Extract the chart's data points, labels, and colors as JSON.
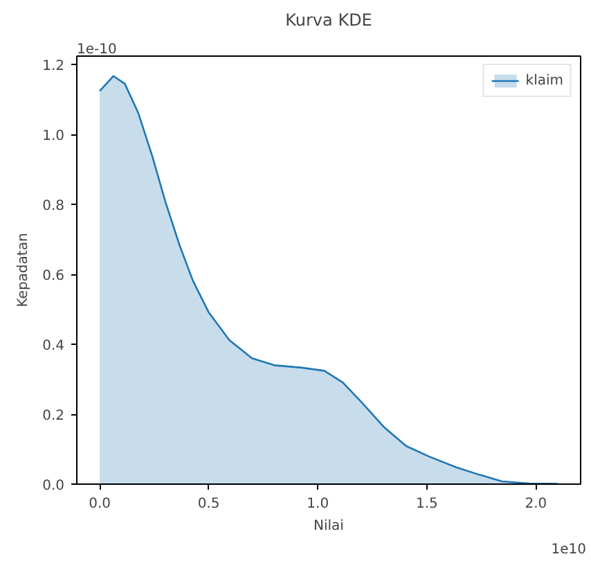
{
  "chart_data": {
    "type": "area",
    "title": "Kurva KDE",
    "xlabel": "Nilai",
    "ylabel": "Kepadatan",
    "annotations": [
      "1e-10",
      "1e10"
    ],
    "series": [
      {
        "name": "klaim",
        "color": "#1f77b4",
        "x": [
          0.0,
          0.0625,
          0.115,
          0.177,
          0.24,
          0.3,
          0.365,
          0.427,
          0.5,
          0.594,
          0.698,
          0.8,
          0.927,
          1.03,
          1.114,
          1.198,
          1.302,
          1.405,
          1.51,
          1.635,
          1.74,
          1.844,
          1.969,
          2.1
        ],
        "values": [
          1.124,
          1.167,
          1.145,
          1.061,
          0.94,
          0.81,
          0.685,
          0.582,
          0.491,
          0.412,
          0.36,
          0.34,
          0.333,
          0.324,
          0.291,
          0.236,
          0.164,
          0.109,
          0.079,
          0.048,
          0.027,
          0.008,
          0.002,
          0.001
        ]
      }
    ],
    "xlim": [
      -0.105,
      2.205
    ],
    "ylim": [
      0,
      1.224
    ],
    "xticks": [
      {
        "value": 0,
        "label": "0.0"
      },
      0.5,
      {
        "value": 1,
        "label": "1.0"
      },
      1.5,
      {
        "value": 2,
        "label": "2.0"
      }
    ],
    "yticks": [
      {
        "value": 0,
        "label": "0.0"
      },
      0.2,
      0.4,
      0.6,
      0.8,
      {
        "value": 1,
        "label": "1.0"
      },
      1.2
    ],
    "grid": false,
    "legend": "top right"
  }
}
